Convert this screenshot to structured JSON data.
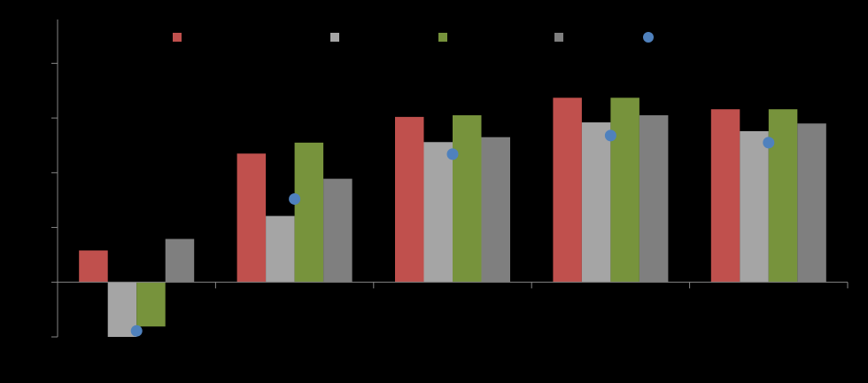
{
  "chart_data": {
    "type": "bar",
    "categories": [
      null,
      null,
      null,
      null,
      null
    ],
    "series": [
      {
        "color": "#c0504d",
        "values": [
          0.58,
          2.35,
          3.02,
          3.37,
          3.16
        ]
      },
      {
        "color": "#a5a5a5",
        "values": [
          -1.0,
          1.21,
          2.56,
          2.92,
          2.76
        ]
      },
      {
        "color": "#77933c",
        "values": [
          -0.81,
          2.55,
          3.05,
          3.37,
          3.16
        ]
      },
      {
        "color": "#7f7f7f",
        "values": [
          0.79,
          1.89,
          2.65,
          3.05,
          2.9
        ]
      },
      {
        "color": "#4f81bd",
        "marker": "circle",
        "values": [
          -0.89,
          1.52,
          2.34,
          2.68,
          2.55
        ]
      }
    ],
    "ylim": [
      -1,
      4.8
    ],
    "yticks": [
      -1,
      0,
      1,
      2,
      3,
      4
    ],
    "legend": "top"
  }
}
